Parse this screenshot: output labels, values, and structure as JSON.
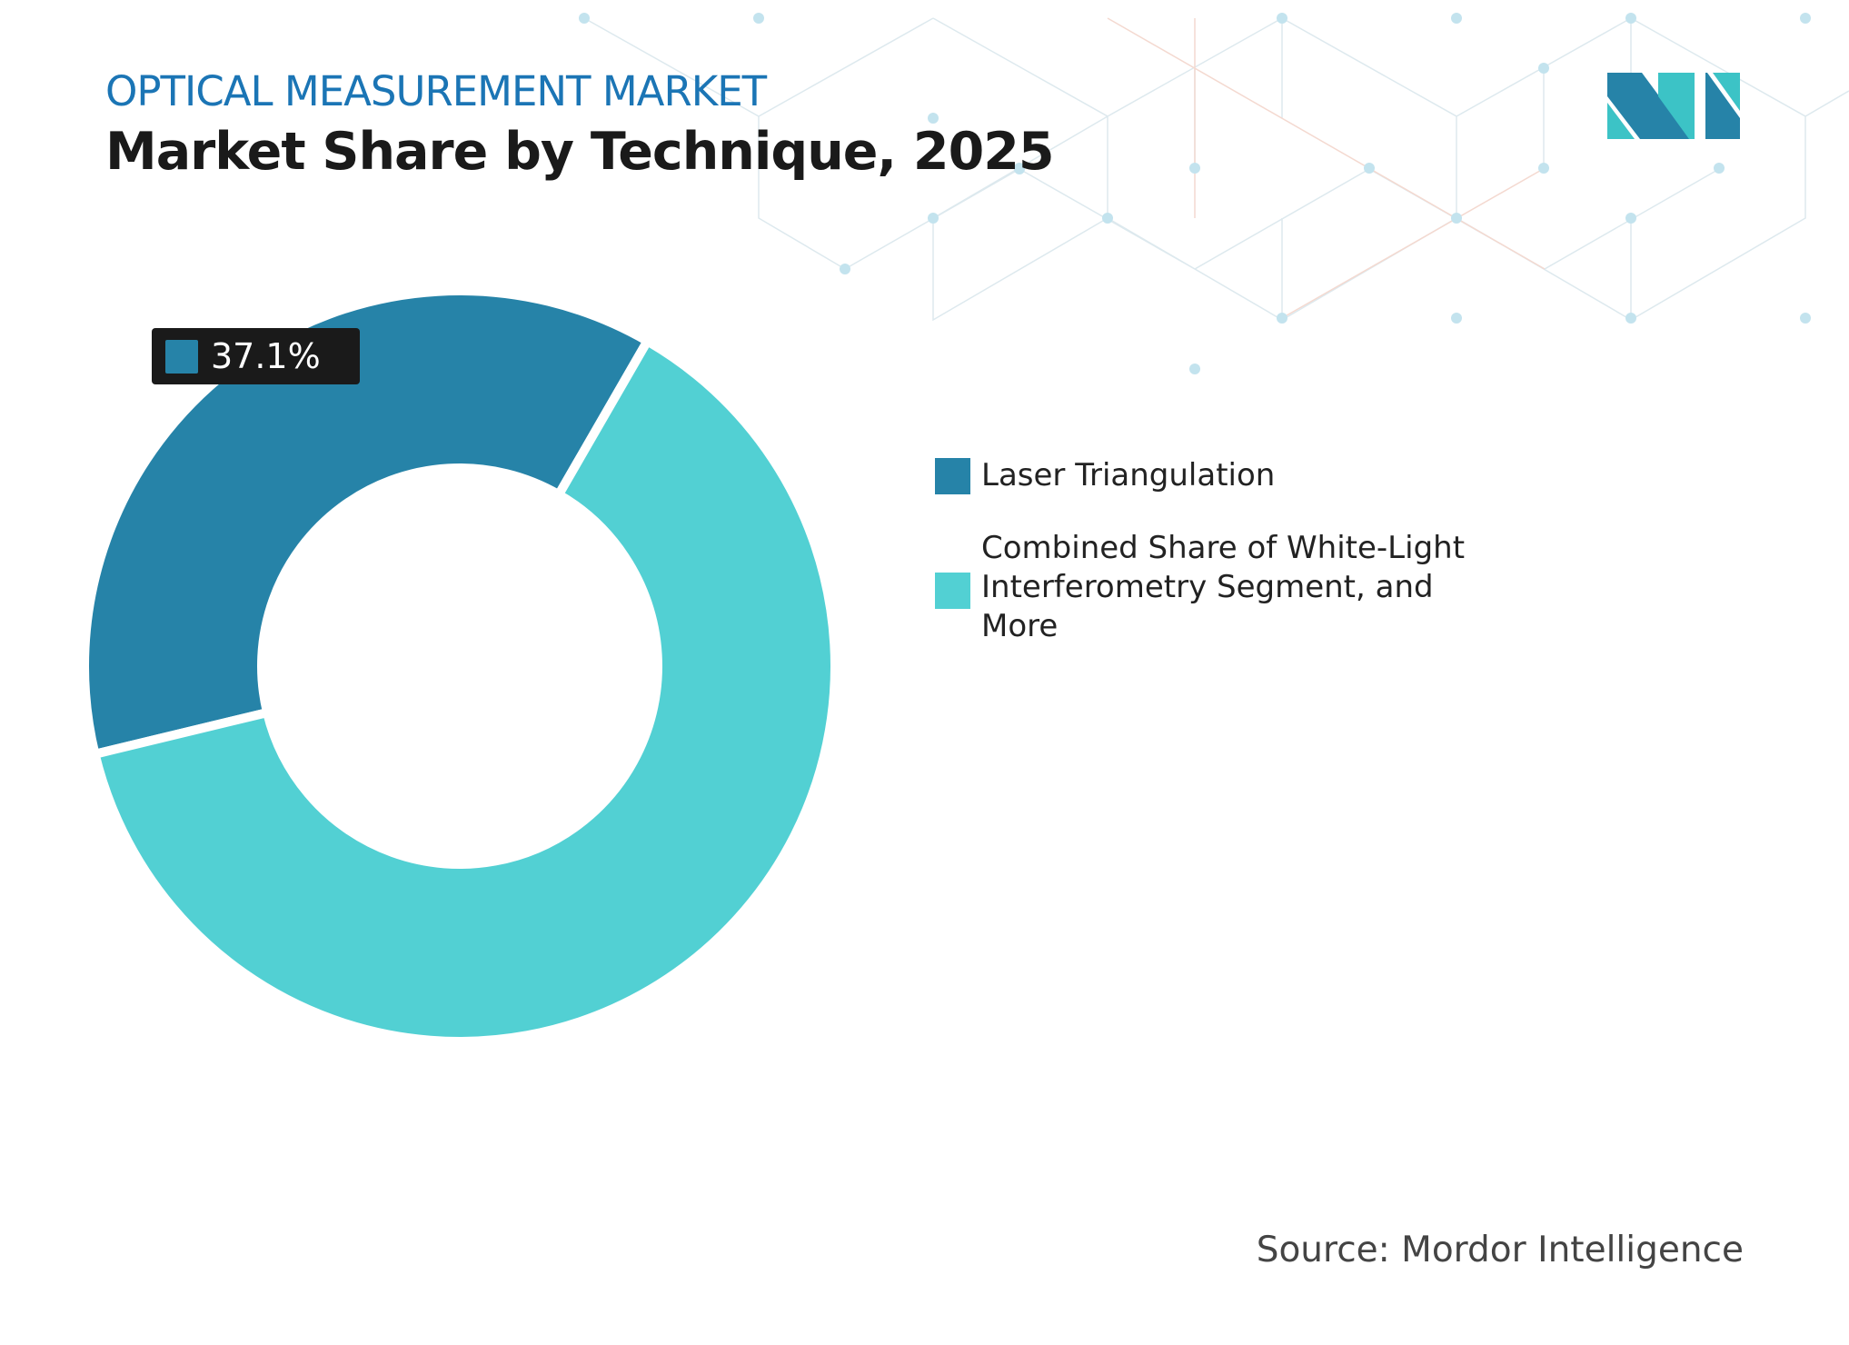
{
  "header": {
    "subtitle": "OPTICAL MEASUREMENT MARKET",
    "title": "Market Share by Technique, 2025"
  },
  "logo": {
    "text": "MI"
  },
  "chart_data": {
    "type": "pie",
    "variant": "donut",
    "title": "Market Share by Technique, 2025",
    "categories": [
      "Laser Triangulation",
      "Combined Share of White-Light Interferometry Segment, and More"
    ],
    "values": [
      37.1,
      62.9
    ],
    "colors": [
      "#2683a8",
      "#52d0d3"
    ],
    "data_labels": [
      {
        "category": "Laser Triangulation",
        "text": "37.1%"
      }
    ],
    "legend_position": "right"
  },
  "legend": [
    {
      "label": "Laser Triangulation",
      "color": "#2683a8"
    },
    {
      "label": "Combined Share of White-Light Interferometry Segment, and More",
      "color": "#52d0d3"
    }
  ],
  "source": "Source: Mordor Intelligence"
}
